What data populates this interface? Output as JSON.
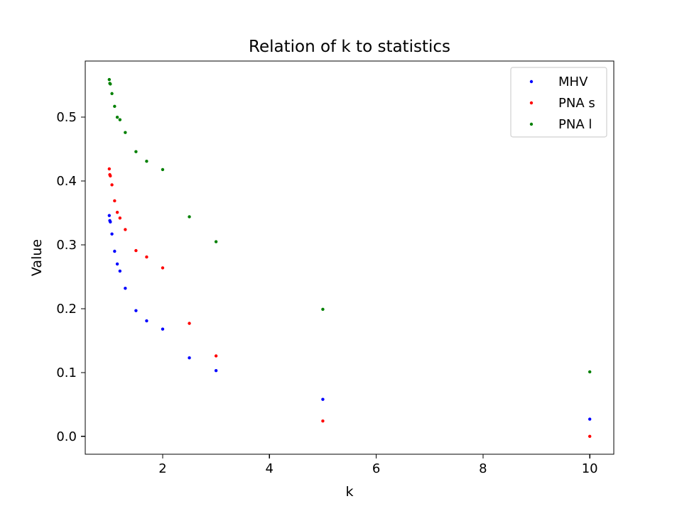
{
  "chart_data": {
    "type": "scatter",
    "title": "Relation of k to statistics",
    "xlabel": "k",
    "ylabel": "Value",
    "xlim": [
      0.55,
      10.45
    ],
    "ylim": [
      -0.028,
      0.588
    ],
    "xticks": [
      2,
      4,
      6,
      8,
      10
    ],
    "yticks": [
      0.0,
      0.1,
      0.2,
      0.3,
      0.4,
      0.5
    ],
    "xtick_labels": [
      "2",
      "4",
      "6",
      "8",
      "10"
    ],
    "ytick_labels": [
      "0.0",
      "0.1",
      "0.2",
      "0.3",
      "0.4",
      "0.5"
    ],
    "grid": false,
    "legend_position": "top-right",
    "series": [
      {
        "name": "MHV",
        "color": "#0000ff",
        "points": [
          [
            1.0,
            0.346
          ],
          [
            1.01,
            0.338
          ],
          [
            1.02,
            0.336
          ],
          [
            1.05,
            0.317
          ],
          [
            1.1,
            0.29
          ],
          [
            1.15,
            0.27
          ],
          [
            1.2,
            0.259
          ],
          [
            1.3,
            0.232
          ],
          [
            1.5,
            0.197
          ],
          [
            1.7,
            0.181
          ],
          [
            2.0,
            0.168
          ],
          [
            2.5,
            0.123
          ],
          [
            3.0,
            0.103
          ],
          [
            5.0,
            0.058
          ],
          [
            10.0,
            0.027
          ]
        ]
      },
      {
        "name": "PNA s",
        "color": "#ff0000",
        "points": [
          [
            1.0,
            0.419
          ],
          [
            1.01,
            0.41
          ],
          [
            1.02,
            0.408
          ],
          [
            1.05,
            0.394
          ],
          [
            1.1,
            0.369
          ],
          [
            1.15,
            0.351
          ],
          [
            1.2,
            0.342
          ],
          [
            1.3,
            0.324
          ],
          [
            1.5,
            0.291
          ],
          [
            1.7,
            0.281
          ],
          [
            2.0,
            0.264
          ],
          [
            2.5,
            0.177
          ],
          [
            3.0,
            0.126
          ],
          [
            5.0,
            0.024
          ],
          [
            10.0,
            0.0
          ]
        ]
      },
      {
        "name": "PNA l",
        "color": "#008000",
        "points": [
          [
            1.0,
            0.559
          ],
          [
            1.01,
            0.553
          ],
          [
            1.02,
            0.552
          ],
          [
            1.05,
            0.537
          ],
          [
            1.1,
            0.517
          ],
          [
            1.15,
            0.5
          ],
          [
            1.2,
            0.496
          ],
          [
            1.3,
            0.476
          ],
          [
            1.5,
            0.446
          ],
          [
            1.7,
            0.431
          ],
          [
            2.0,
            0.418
          ],
          [
            2.5,
            0.344
          ],
          [
            3.0,
            0.305
          ],
          [
            5.0,
            0.199
          ],
          [
            10.0,
            0.101
          ]
        ]
      }
    ]
  }
}
